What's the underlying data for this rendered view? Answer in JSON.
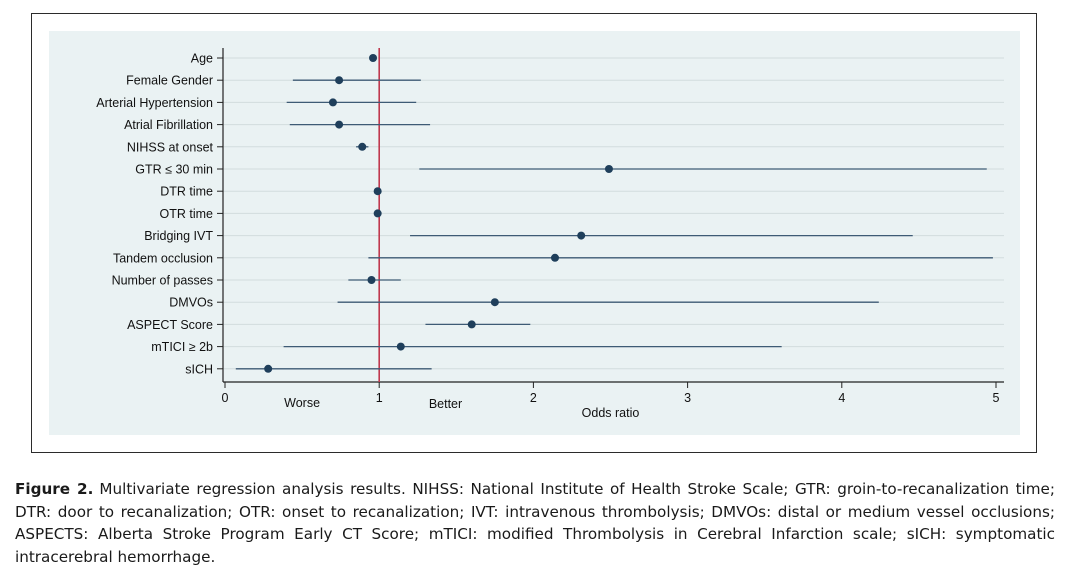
{
  "chart_data": {
    "type": "forest",
    "xlabel": "Odds ratio",
    "xlim": [
      0,
      5
    ],
    "xticks": [
      0,
      1,
      2,
      3,
      4,
      5
    ],
    "reference_line": 1,
    "reference_color": "#c0394e",
    "marker_color": "#1f3f5b",
    "line_color": "#3e5b75",
    "plot_background": "#eaf2f3",
    "grid": true,
    "direction_labels": {
      "left": "Worse",
      "right": "Better"
    },
    "rows": [
      {
        "label": "Age",
        "or": 0.96,
        "lo": 0.96,
        "hi": 0.96
      },
      {
        "label": "Female Gender",
        "or": 0.74,
        "lo": 0.44,
        "hi": 1.27
      },
      {
        "label": "Arterial Hypertension",
        "or": 0.7,
        "lo": 0.4,
        "hi": 1.24
      },
      {
        "label": "Atrial Fibrillation",
        "or": 0.74,
        "lo": 0.42,
        "hi": 1.33
      },
      {
        "label": "NIHSS at onset",
        "or": 0.89,
        "lo": 0.85,
        "hi": 0.93
      },
      {
        "label": "GTR ≤ 30 min",
        "or": 2.49,
        "lo": 1.26,
        "hi": 4.94
      },
      {
        "label": "DTR time",
        "or": 0.99,
        "lo": 0.99,
        "hi": 0.99
      },
      {
        "label": "OTR time",
        "or": 0.99,
        "lo": 0.99,
        "hi": 0.99
      },
      {
        "label": "Bridging IVT",
        "or": 2.31,
        "lo": 1.2,
        "hi": 4.46
      },
      {
        "label": "Tandem occlusion",
        "or": 2.14,
        "lo": 0.93,
        "hi": 4.98
      },
      {
        "label": "Number of passes",
        "or": 0.95,
        "lo": 0.8,
        "hi": 1.14
      },
      {
        "label": "DMVOs",
        "or": 1.75,
        "lo": 0.73,
        "hi": 4.24
      },
      {
        "label": "ASPECT Score",
        "or": 1.6,
        "lo": 1.3,
        "hi": 1.98
      },
      {
        "label": "mTICI ≥ 2b",
        "or": 1.14,
        "lo": 0.38,
        "hi": 3.61
      },
      {
        "label": "sICH",
        "or": 0.28,
        "lo": 0.07,
        "hi": 1.34
      }
    ]
  },
  "caption": {
    "label": "Figure 2.",
    "text": "Multivariate regression analysis results. NIHSS: National Institute of Health Stroke Scale; GTR: groin-to-recanalization time; DTR: door to recanalization; OTR: onset to recanalization; IVT: intravenous thrombolysis; DMVOs: distal or medium vessel occlusions; ASPECTS: Alberta Stroke Program Early CT Score; mTICI: modified Thrombolysis in Cerebral Infarction scale; sICH: symptomatic intracerebral hemorrhage."
  }
}
